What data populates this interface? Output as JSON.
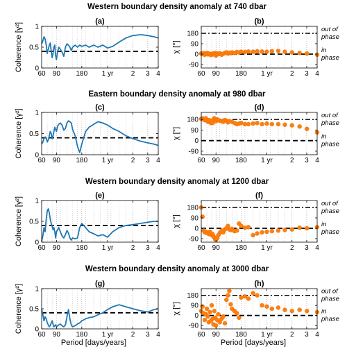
{
  "figure": {
    "rows": [
      {
        "title": "Western boundary density anomaly at 740 dbar"
      },
      {
        "title": "Eastern boundary density anomaly at 980 dbar"
      },
      {
        "title": "Western boundary density anomaly at 1200 dbar"
      },
      {
        "title": "Western boundary density anomaly at 3000 dbar"
      }
    ],
    "shared_xlabel": "Period [days/years]",
    "x_tick_labels": [
      "60",
      "90",
      "180",
      "1 yr",
      "2",
      "3",
      "4"
    ],
    "x_ticks_days": [
      60,
      90,
      180,
      365,
      730,
      1095,
      1460
    ],
    "minor_grid_days": [
      70,
      80,
      100,
      120,
      140,
      160,
      200,
      250,
      300,
      400,
      500,
      600
    ],
    "coherence_ylabel": "Coherence [γ²]",
    "phase_ylabel": "χ [°]",
    "phase_annotations": {
      "out_line1": "out of",
      "out_line2": "phase",
      "in_line1": "in",
      "in_line2": "phase"
    },
    "colors": {
      "coherence": "#1f77b4",
      "phase": "#ff7f0e",
      "threshold": "#000000"
    }
  },
  "chart_data": [
    {
      "type": "line",
      "panel_label": "(a)",
      "title": "Western boundary density anomaly at 740 dbar",
      "xlabel": "",
      "ylabel": "Coherence [γ²]",
      "xscale": "log",
      "xlim": [
        60,
        1460
      ],
      "ylim": [
        0,
        1
      ],
      "yticks": [
        0,
        0.5,
        1
      ],
      "significance_level": 0.4,
      "threshold_style": "dashed",
      "x": [
        60,
        62,
        64,
        66,
        68,
        70,
        72,
        74,
        76,
        78,
        80,
        82,
        84,
        86,
        88,
        90,
        93,
        96,
        100,
        105,
        110,
        115,
        120,
        125,
        130,
        135,
        140,
        150,
        160,
        170,
        180,
        200,
        220,
        250,
        280,
        320,
        365,
        420,
        500,
        600,
        730,
        900,
        1100,
        1300,
        1460
      ],
      "y": [
        0.58,
        0.65,
        0.75,
        0.7,
        0.55,
        0.35,
        0.45,
        0.55,
        0.6,
        0.4,
        0.25,
        0.35,
        0.5,
        0.55,
        0.3,
        0.2,
        0.4,
        0.5,
        0.45,
        0.38,
        0.28,
        0.5,
        0.58,
        0.55,
        0.5,
        0.42,
        0.5,
        0.55,
        0.5,
        0.55,
        0.52,
        0.55,
        0.5,
        0.55,
        0.5,
        0.55,
        0.48,
        0.52,
        0.62,
        0.72,
        0.78,
        0.8,
        0.78,
        0.75,
        0.72
      ]
    },
    {
      "type": "scatter",
      "panel_label": "(b)",
      "title": "Western boundary density anomaly at 740 dbar",
      "xlabel": "",
      "ylabel": "χ [°]",
      "xscale": "log",
      "xlim": [
        60,
        1460
      ],
      "ylim": [
        -120,
        240
      ],
      "yticks": [
        -90,
        0,
        90,
        180
      ],
      "out_of_phase_ref": 180,
      "in_phase_ref": 0,
      "x": [
        60,
        62,
        64,
        66,
        68,
        70,
        72,
        74,
        76,
        78,
        80,
        82,
        84,
        86,
        88,
        90,
        93,
        96,
        100,
        105,
        110,
        115,
        120,
        125,
        130,
        135,
        140,
        150,
        160,
        170,
        180,
        200,
        220,
        250,
        280,
        320,
        365,
        420,
        500,
        600,
        730,
        900,
        1100,
        1460
      ],
      "y": [
        5,
        0,
        8,
        -5,
        3,
        10,
        -2,
        5,
        0,
        -8,
        0,
        5,
        -3,
        2,
        10,
        -12,
        5,
        0,
        8,
        -5,
        3,
        10,
        15,
        5,
        12,
        8,
        15,
        10,
        18,
        14,
        20,
        18,
        22,
        20,
        25,
        22,
        20,
        25,
        28,
        20,
        15,
        10,
        5,
        -5
      ]
    },
    {
      "type": "line",
      "panel_label": "(c)",
      "title": "Eastern boundary density anomaly at 980 dbar",
      "xlabel": "",
      "ylabel": "Coherence [γ²]",
      "xscale": "log",
      "xlim": [
        60,
        1460
      ],
      "ylim": [
        0,
        1
      ],
      "yticks": [
        0,
        0.5,
        1
      ],
      "significance_level": 0.4,
      "threshold_style": "dashed",
      "x": [
        60,
        62,
        64,
        66,
        68,
        70,
        72,
        74,
        76,
        78,
        80,
        82,
        84,
        86,
        88,
        90,
        93,
        96,
        100,
        105,
        110,
        115,
        120,
        125,
        130,
        135,
        140,
        150,
        160,
        170,
        180,
        200,
        220,
        250,
        280,
        320,
        365,
        420,
        500,
        600,
        730,
        900,
        1100,
        1300,
        1460
      ],
      "y": [
        0.25,
        0.3,
        0.38,
        0.42,
        0.4,
        0.3,
        0.35,
        0.45,
        0.55,
        0.5,
        0.38,
        0.45,
        0.55,
        0.65,
        0.6,
        0.55,
        0.68,
        0.72,
        0.75,
        0.7,
        0.58,
        0.62,
        0.75,
        0.8,
        0.78,
        0.75,
        0.6,
        0.45,
        0.2,
        0.05,
        0.25,
        0.55,
        0.65,
        0.72,
        0.78,
        0.75,
        0.7,
        0.62,
        0.55,
        0.45,
        0.38,
        0.32,
        0.28,
        0.25,
        0.22
      ]
    },
    {
      "type": "scatter",
      "panel_label": "(d)",
      "title": "Eastern boundary density anomaly at 980 dbar",
      "xlabel": "",
      "ylabel": "χ [°]",
      "xscale": "log",
      "xlim": [
        60,
        1460
      ],
      "ylim": [
        -120,
        240
      ],
      "yticks": [
        -90,
        0,
        90,
        180
      ],
      "out_of_phase_ref": 180,
      "in_phase_ref": 0,
      "x": [
        60,
        62,
        64,
        66,
        68,
        70,
        72,
        74,
        76,
        78,
        80,
        82,
        84,
        86,
        88,
        90,
        93,
        96,
        100,
        105,
        110,
        115,
        120,
        125,
        130,
        140,
        150,
        160,
        170,
        180,
        200,
        220,
        250,
        280,
        320,
        365,
        420,
        500,
        600,
        730,
        900,
        1100,
        1460
      ],
      "y": [
        185,
        190,
        180,
        175,
        190,
        170,
        160,
        175,
        170,
        150,
        165,
        150,
        180,
        190,
        175,
        165,
        180,
        175,
        170,
        165,
        160,
        175,
        170,
        155,
        165,
        160,
        150,
        140,
        145,
        150,
        140,
        140,
        145,
        150,
        140,
        145,
        140,
        140,
        135,
        130,
        120,
        100,
        70
      ]
    },
    {
      "type": "line",
      "panel_label": "(e)",
      "title": "Western boundary density anomaly at 1200 dbar",
      "xlabel": "",
      "ylabel": "Coherence [γ²]",
      "xscale": "log",
      "xlim": [
        60,
        1460
      ],
      "ylim": [
        0,
        1
      ],
      "yticks": [
        0,
        0.5,
        1
      ],
      "significance_level": 0.4,
      "threshold_style": "dashed",
      "x": [
        60,
        62,
        64,
        66,
        68,
        70,
        72,
        74,
        76,
        78,
        80,
        82,
        84,
        86,
        88,
        90,
        93,
        96,
        100,
        105,
        110,
        115,
        120,
        125,
        130,
        135,
        140,
        150,
        160,
        170,
        180,
        200,
        220,
        250,
        280,
        320,
        365,
        420,
        500,
        600,
        730,
        900,
        1100,
        1300,
        1460
      ],
      "y": [
        0.02,
        0.15,
        0.35,
        0.25,
        0.55,
        0.75,
        0.8,
        0.7,
        0.55,
        0.45,
        0.38,
        0.3,
        0.35,
        0.25,
        0.1,
        0.25,
        0.3,
        0.35,
        0.25,
        0.15,
        0.1,
        0.18,
        0.28,
        0.22,
        0.1,
        0.05,
        0.1,
        0.08,
        0.1,
        0.35,
        0.45,
        0.35,
        0.25,
        0.2,
        0.15,
        0.18,
        0.12,
        0.25,
        0.35,
        0.4,
        0.42,
        0.45,
        0.48,
        0.5,
        0.5
      ]
    },
    {
      "type": "scatter",
      "panel_label": "(f)",
      "title": "Western boundary density anomaly at 1200 dbar",
      "xlabel": "",
      "ylabel": "χ [°]",
      "xscale": "log",
      "xlim": [
        60,
        1460
      ],
      "ylim": [
        -120,
        240
      ],
      "yticks": [
        -90,
        0,
        90,
        180
      ],
      "out_of_phase_ref": 180,
      "in_phase_ref": 0,
      "x": [
        60,
        62,
        64,
        66,
        68,
        70,
        72,
        74,
        76,
        78,
        80,
        82,
        84,
        86,
        88,
        90,
        93,
        96,
        100,
        105,
        110,
        115,
        120,
        125,
        130,
        135,
        140,
        150,
        160,
        170,
        180,
        200,
        220,
        250,
        280,
        320,
        365,
        420,
        500,
        600,
        730,
        900,
        1100,
        1460
      ],
      "y": [
        180,
        100,
        -20,
        -35,
        -30,
        -40,
        -35,
        -50,
        -30,
        -40,
        -60,
        -50,
        -70,
        -80,
        -95,
        -100,
        -85,
        -60,
        -40,
        -20,
        -35,
        -10,
        0,
        20,
        -10,
        -15,
        -5,
        -25,
        -20,
        40,
        20,
        5,
        10,
        -60,
        -45,
        -35,
        -30,
        -25,
        -20,
        -15,
        -10,
        5,
        0,
        10
      ]
    },
    {
      "type": "line",
      "panel_label": "(g)",
      "title": "Western boundary density anomaly at 3000 dbar",
      "xlabel": "Period [days/years]",
      "ylabel": "Coherence [γ²]",
      "xscale": "log",
      "xlim": [
        60,
        1460
      ],
      "ylim": [
        0,
        1
      ],
      "yticks": [
        0,
        0.5,
        1
      ],
      "significance_level": 0.4,
      "threshold_style": "dashed",
      "x": [
        60,
        62,
        64,
        66,
        68,
        70,
        72,
        74,
        76,
        78,
        80,
        82,
        84,
        86,
        88,
        90,
        93,
        96,
        100,
        105,
        110,
        115,
        120,
        125,
        130,
        135,
        140,
        150,
        160,
        170,
        180,
        200,
        220,
        250,
        280,
        320,
        365,
        420,
        500,
        600,
        730,
        900,
        1100,
        1300,
        1460
      ],
      "y": [
        0.5,
        0.35,
        0.2,
        0.3,
        0.25,
        0.15,
        0.1,
        0.05,
        0.08,
        0.15,
        0.2,
        0.12,
        0.05,
        0.08,
        0.1,
        0.05,
        0.08,
        0.1,
        0.12,
        0.08,
        0.05,
        0.1,
        0.3,
        0.48,
        0.25,
        0.1,
        0.05,
        0.08,
        0.12,
        0.15,
        0.2,
        0.25,
        0.28,
        0.3,
        0.35,
        0.4,
        0.48,
        0.55,
        0.6,
        0.55,
        0.5,
        0.45,
        0.42,
        0.48,
        0.5
      ]
    },
    {
      "type": "scatter",
      "panel_label": "(h)",
      "title": "Western boundary density anomaly at 3000 dbar",
      "xlabel": "Period [days/years]",
      "ylabel": "χ [°]",
      "xscale": "log",
      "xlim": [
        60,
        1460
      ],
      "ylim": [
        -120,
        240
      ],
      "yticks": [
        -90,
        0,
        90,
        180
      ],
      "out_of_phase_ref": 180,
      "in_phase_ref": 0,
      "x": [
        60,
        62,
        64,
        66,
        68,
        70,
        72,
        74,
        76,
        78,
        80,
        82,
        84,
        86,
        88,
        90,
        93,
        96,
        100,
        105,
        110,
        115,
        120,
        125,
        130,
        135,
        140,
        150,
        160,
        170,
        180,
        200,
        220,
        250,
        280,
        320,
        365,
        420,
        500,
        600,
        730,
        900,
        1100,
        1460
      ],
      "y": [
        40,
        80,
        20,
        -40,
        10,
        60,
        -10,
        -60,
        30,
        -50,
        90,
        -30,
        -80,
        40,
        -20,
        -90,
        -40,
        10,
        -60,
        -30,
        -10,
        -70,
        140,
        180,
        220,
        100,
        60,
        40,
        20,
        -20,
        160,
        170,
        150,
        200,
        180,
        90,
        80,
        60,
        70,
        50,
        40,
        50,
        40,
        30
      ]
    }
  ]
}
